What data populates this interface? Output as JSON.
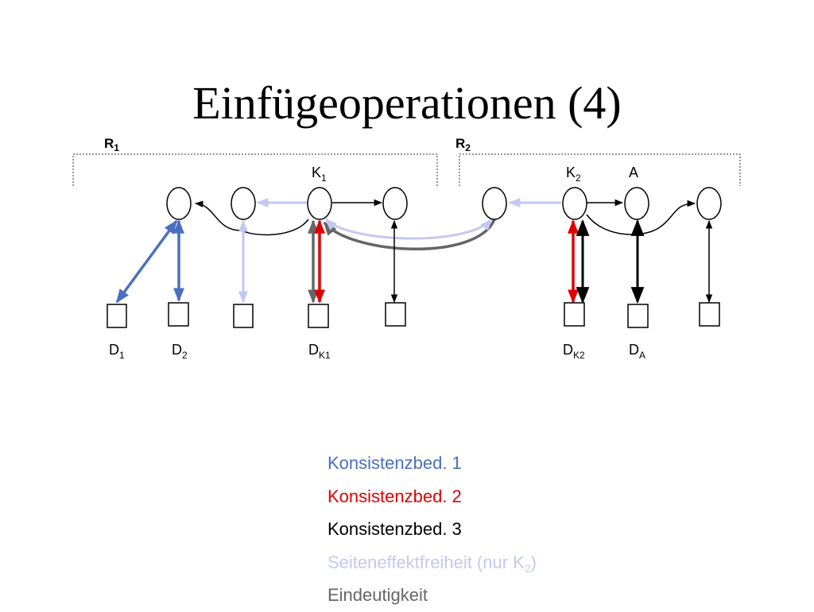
{
  "slide": {
    "title": "Einfügeoperationen (4)"
  },
  "diagram": {
    "groups": [
      {
        "name": "R",
        "sub": "1"
      },
      {
        "name": "R",
        "sub": "2"
      }
    ],
    "node_labels": [
      {
        "name": "K",
        "sub": "1"
      },
      {
        "name": "K",
        "sub": "2"
      },
      {
        "name": "A",
        "sub": ""
      }
    ],
    "doc_labels": [
      {
        "name": "D",
        "sub": "1"
      },
      {
        "name": "D",
        "sub": "2"
      },
      {
        "name": "D",
        "sub": "K1"
      },
      {
        "name": "D",
        "sub": "K2"
      },
      {
        "name": "D",
        "sub": "A"
      }
    ],
    "colors": {
      "blue": "#4a6fc0",
      "red": "#e00000",
      "black": "#000000",
      "lavender": "#c3c8f0",
      "gray": "#666666"
    }
  },
  "legend": [
    {
      "text": "Konsistenzbed. 1",
      "color": "#4a6fc0"
    },
    {
      "text": "Konsistenzbed. 2",
      "color": "#e00000"
    },
    {
      "text": "Konsistenzbed. 3",
      "color": "#000000"
    },
    {
      "text": "Seiteneffektfreiheit (nur K",
      "sub": "2",
      "suffix": ")",
      "color": "#c3c8f0"
    },
    {
      "text": "Eindeutigkeit",
      "color": "#666666"
    }
  ]
}
